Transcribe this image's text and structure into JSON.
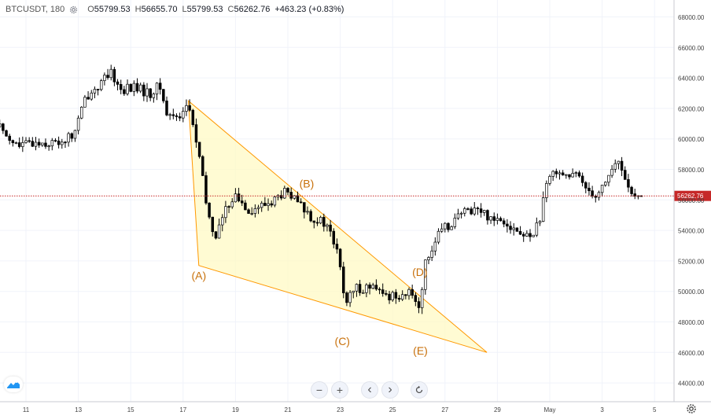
{
  "header": {
    "symbol_interval": "BTCUSDT, 180",
    "open_key": "O",
    "open_value": "55799.53",
    "high_key": "H",
    "high_value": "56655.70",
    "low_key": "L",
    "low_value": "55799.53",
    "close_key": "C",
    "close_value": "56262.76",
    "change": "+463.23 (+0.83%)"
  },
  "colors": {
    "candle_up": "#ffffff",
    "candle_down": "#000000",
    "wedge_stroke": "#ff9800",
    "wedge_fill": "#fff9c4",
    "label_color": "#c8700a",
    "price_line": "#c62828"
  },
  "icons": [
    "gear-icon",
    "tradingview-logo-icon",
    "zoom-out-icon",
    "zoom-in-icon",
    "scroll-left-icon",
    "scroll-right-icon",
    "reset-icon",
    "settings-icon"
  ],
  "chart_data": {
    "type": "candlestick",
    "symbol": "BTCUSDT",
    "interval": "180",
    "x_tick_labels": [
      "11",
      "13",
      "15",
      "17",
      "19",
      "21",
      "23",
      "25",
      "27",
      "29",
      "May",
      "3",
      "5"
    ],
    "y_tick_labels": [
      "44000.00",
      "46000.00",
      "48000.00",
      "50000.00",
      "52000.00",
      "54000.00",
      "56000.00",
      "58000.00",
      "60000.00",
      "62000.00",
      "64000.00",
      "66000.00",
      "68000.00"
    ],
    "ylim": [
      43000,
      69000
    ],
    "last_price": 56262.76,
    "last_price_label": "56262.76",
    "grid": true,
    "close_path": [
      {
        "d": 10.0,
        "c": 60800
      },
      {
        "d": 10.7,
        "c": 59500
      },
      {
        "d": 11.4,
        "c": 59800
      },
      {
        "d": 12.1,
        "c": 59700
      },
      {
        "d": 12.8,
        "c": 60200
      },
      {
        "d": 13.3,
        "c": 62800
      },
      {
        "d": 13.7,
        "c": 63400
      },
      {
        "d": 14.3,
        "c": 64300
      },
      {
        "d": 14.6,
        "c": 63200
      },
      {
        "d": 15.2,
        "c": 63400
      },
      {
        "d": 15.7,
        "c": 62900
      },
      {
        "d": 16.1,
        "c": 63500
      },
      {
        "d": 16.4,
        "c": 61500
      },
      {
        "d": 16.9,
        "c": 61600
      },
      {
        "d": 17.2,
        "c": 62300
      },
      {
        "d": 17.6,
        "c": 59000
      },
      {
        "d": 17.9,
        "c": 55500
      },
      {
        "d": 18.2,
        "c": 53500
      },
      {
        "d": 18.5,
        "c": 54800
      },
      {
        "d": 18.9,
        "c": 56300
      },
      {
        "d": 19.6,
        "c": 55300
      },
      {
        "d": 20.3,
        "c": 55800
      },
      {
        "d": 20.9,
        "c": 56500
      },
      {
        "d": 21.5,
        "c": 55600
      },
      {
        "d": 21.9,
        "c": 54900
      },
      {
        "d": 22.5,
        "c": 54300
      },
      {
        "d": 22.9,
        "c": 52500
      },
      {
        "d": 23.2,
        "c": 49200
      },
      {
        "d": 23.6,
        "c": 50200
      },
      {
        "d": 24.1,
        "c": 50300
      },
      {
        "d": 24.7,
        "c": 49700
      },
      {
        "d": 25.3,
        "c": 49800
      },
      {
        "d": 25.8,
        "c": 49800
      },
      {
        "d": 26.0,
        "c": 49000
      },
      {
        "d": 26.3,
        "c": 52300
      },
      {
        "d": 26.8,
        "c": 53800
      },
      {
        "d": 27.4,
        "c": 54800
      },
      {
        "d": 28.1,
        "c": 55500
      },
      {
        "d": 28.7,
        "c": 54900
      },
      {
        "d": 29.3,
        "c": 54700
      },
      {
        "d": 29.8,
        "c": 53800
      },
      {
        "d": 30.2,
        "c": 53500
      },
      {
        "d": 30.6,
        "c": 54600
      },
      {
        "d": 30.9,
        "c": 57000
      },
      {
        "d": 31.2,
        "c": 58100
      },
      {
        "d": 31.7,
        "c": 57600
      },
      {
        "d": 32.1,
        "c": 57500
      },
      {
        "d": 32.5,
        "c": 56700
      },
      {
        "d": 32.8,
        "c": 56300
      },
      {
        "d": 33.3,
        "c": 57800
      },
      {
        "d": 33.6,
        "c": 58500
      },
      {
        "d": 34.0,
        "c": 57000
      },
      {
        "d": 34.2,
        "c": 55900
      },
      {
        "d": 34.6,
        "c": 56262.76
      }
    ],
    "annotations": [
      {
        "label": "(A)",
        "d": 17.6,
        "price": 51700
      },
      {
        "label": "(B)",
        "d": 21.6,
        "price": 56300
      },
      {
        "label": "(C)",
        "d": 23.2,
        "price": 47300
      },
      {
        "label": "(D)",
        "d": 26.1,
        "price": 50600
      },
      {
        "label": "(E)",
        "d": 26.0,
        "price": 47100
      }
    ],
    "wedge": [
      {
        "d": 17.2,
        "price": 62500
      },
      {
        "d": 28.6,
        "price": 46000
      },
      {
        "d": 17.6,
        "price": 51700
      }
    ]
  },
  "controls": {
    "zoom_out": "−",
    "zoom_in": "+",
    "scroll_left": "‹",
    "scroll_right": "›"
  }
}
